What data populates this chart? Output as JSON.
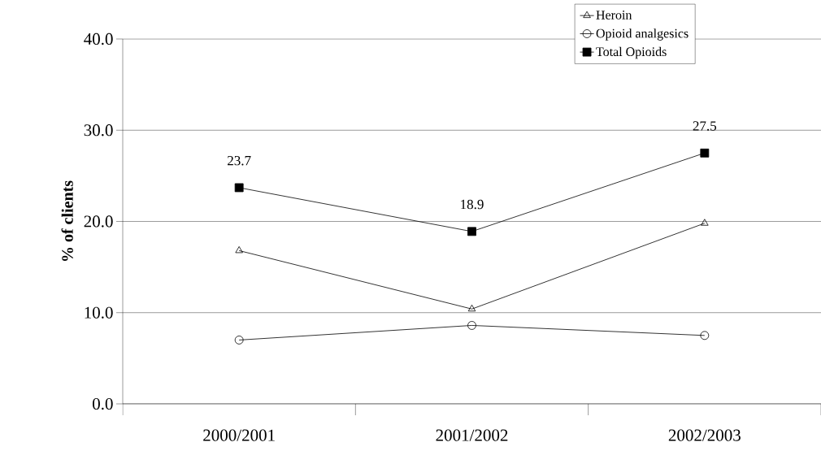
{
  "chart_data": {
    "type": "line",
    "ylabel": "% of clients",
    "categories": [
      "2000/2001",
      "2001/2002",
      "2002/2003"
    ],
    "series": [
      {
        "name": "Heroin",
        "color": "#000000",
        "marker": "triangle",
        "values": [
          16.8,
          10.4,
          19.8
        ]
      },
      {
        "name": "Opioid analgesics",
        "color": "#000000",
        "marker": "circle",
        "values": [
          7.0,
          8.6,
          7.5
        ]
      },
      {
        "name": "Total Opioids",
        "color": "#000000",
        "marker": "square",
        "values": [
          23.7,
          18.9,
          27.5
        ],
        "value_labels": [
          "23.7",
          "18.9",
          "27.5"
        ]
      }
    ],
    "ylim": [
      0,
      40
    ],
    "yticks": [
      {
        "value": 0,
        "label": "0.0"
      },
      {
        "value": 10,
        "label": "10.0"
      },
      {
        "value": 20,
        "label": "20.0"
      },
      {
        "value": 30,
        "label": "30.0"
      },
      {
        "value": 40,
        "label": "40.0"
      }
    ],
    "grid": "y",
    "legend": "top right",
    "line_style": "solid"
  }
}
